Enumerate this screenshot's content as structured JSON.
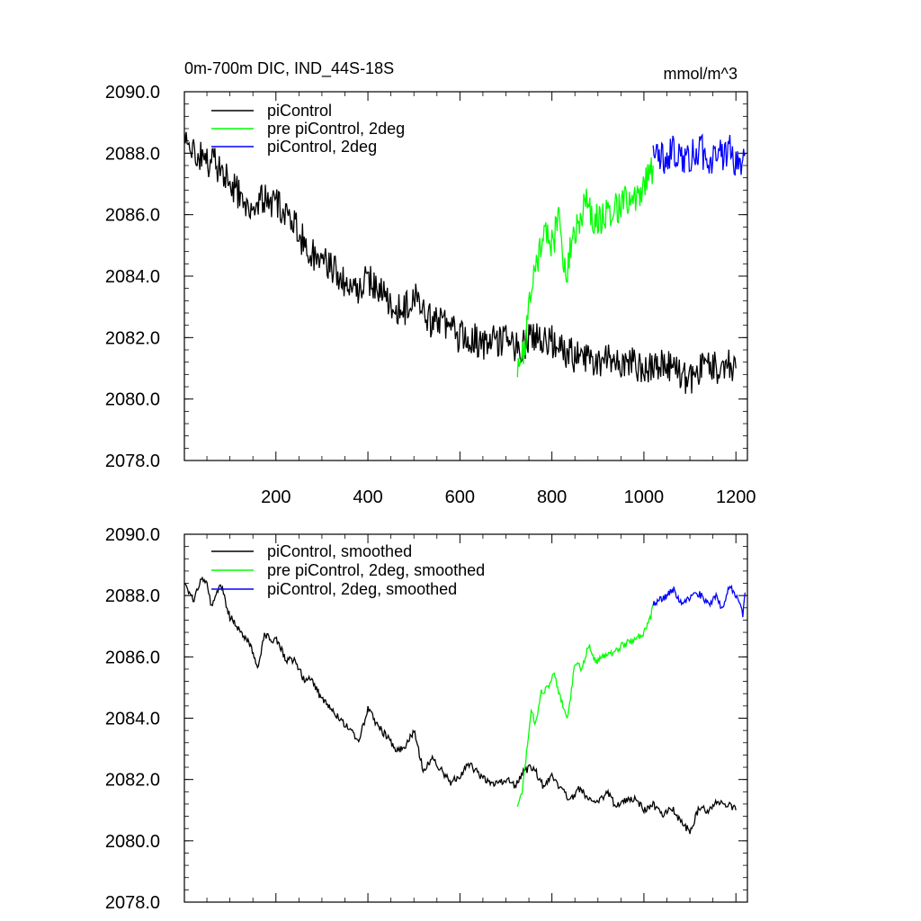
{
  "chart_data": [
    {
      "type": "line",
      "title": "0m-700m DIC, IND_44S-18S",
      "units": "mmol/m^3",
      "xlim": [
        1,
        1225
      ],
      "ylim": [
        2078.0,
        2090.0
      ],
      "x_tick_labels": [
        "200",
        "400",
        "600",
        "800",
        "1000",
        "1200"
      ],
      "y_tick_labels": [
        "2078.0",
        "2080.0",
        "2082.0",
        "2084.0",
        "2086.0",
        "2088.0",
        "2090.0"
      ],
      "legend": "top-left",
      "series": [
        {
          "name": "piControl",
          "color": "#000000",
          "x": [
            1,
            25,
            50,
            75,
            100,
            125,
            150,
            175,
            200,
            225,
            250,
            275,
            300,
            325,
            350,
            375,
            400,
            425,
            450,
            475,
            500,
            525,
            550,
            575,
            600,
            625,
            650,
            675,
            700,
            725,
            750,
            775,
            800,
            825,
            850,
            875,
            900,
            925,
            950,
            975,
            1000,
            1025,
            1050,
            1075,
            1100,
            1125,
            1150,
            1175,
            1200
          ],
          "y": [
            2088.4,
            2088.0,
            2087.7,
            2087.6,
            2087.0,
            2086.6,
            2086.3,
            2086.5,
            2086.4,
            2086.0,
            2085.4,
            2084.7,
            2084.5,
            2084.2,
            2083.7,
            2083.5,
            2083.9,
            2083.5,
            2083.0,
            2082.8,
            2083.4,
            2082.6,
            2082.5,
            2082.3,
            2082.0,
            2082.0,
            2081.8,
            2081.9,
            2081.9,
            2081.6,
            2081.9,
            2082.1,
            2081.9,
            2081.6,
            2081.4,
            2081.3,
            2081.2,
            2081.4,
            2081.1,
            2081.2,
            2081.0,
            2081.2,
            2081.1,
            2080.9,
            2080.6,
            2081.1,
            2081.0,
            2081.1,
            2081.0
          ]
        },
        {
          "name": "pre piControl, 2deg",
          "color": "#00ff00",
          "x": [
            725,
            740,
            755,
            770,
            785,
            800,
            815,
            830,
            845,
            860,
            875,
            890,
            905,
            920,
            935,
            950,
            965,
            980,
            995,
            1010,
            1020
          ],
          "y": [
            2081.0,
            2081.6,
            2083.8,
            2084.6,
            2085.4,
            2085.0,
            2085.8,
            2083.8,
            2085.4,
            2085.6,
            2086.6,
            2085.9,
            2085.8,
            2086.0,
            2086.1,
            2086.3,
            2086.5,
            2086.6,
            2086.8,
            2087.2,
            2087.6
          ]
        },
        {
          "name": "piControl, 2deg",
          "color": "#0000ff",
          "x": [
            1020,
            1035,
            1050,
            1065,
            1080,
            1095,
            1110,
            1125,
            1140,
            1155,
            1170,
            1185,
            1200,
            1215,
            1220
          ],
          "y": [
            2087.8,
            2087.9,
            2087.8,
            2088.1,
            2087.9,
            2087.8,
            2088.0,
            2088.1,
            2087.7,
            2088.0,
            2087.9,
            2088.2,
            2087.6,
            2087.9,
            2088.0
          ]
        }
      ]
    },
    {
      "type": "line",
      "xlim": [
        1,
        1225
      ],
      "ylim": [
        2078.0,
        2090.0
      ],
      "y_tick_labels": [
        "2078.0",
        "2080.0",
        "2082.0",
        "2084.0",
        "2086.0",
        "2088.0",
        "2090.0"
      ],
      "legend": "top-left",
      "series": [
        {
          "name": "piControl, smoothed",
          "color": "#000000",
          "x": [
            1,
            10,
            20,
            30,
            40,
            50,
            60,
            70,
            80,
            90,
            100,
            115,
            130,
            145,
            160,
            175,
            190,
            205,
            220,
            240,
            260,
            280,
            300,
            320,
            340,
            360,
            380,
            400,
            420,
            440,
            460,
            480,
            500,
            520,
            540,
            560,
            580,
            600,
            620,
            640,
            660,
            680,
            700,
            720,
            740,
            760,
            780,
            800,
            820,
            840,
            860,
            880,
            900,
            920,
            940,
            960,
            980,
            1000,
            1020,
            1040,
            1060,
            1080,
            1100,
            1120,
            1140,
            1160,
            1180,
            1200
          ],
          "y": [
            2088.5,
            2088.1,
            2087.8,
            2088.3,
            2088.6,
            2088.4,
            2087.6,
            2088.0,
            2088.4,
            2087.8,
            2087.3,
            2087.0,
            2086.7,
            2086.4,
            2085.6,
            2086.7,
            2086.6,
            2086.5,
            2085.9,
            2085.9,
            2085.3,
            2085.2,
            2084.6,
            2084.3,
            2084.0,
            2083.6,
            2083.3,
            2084.3,
            2083.8,
            2083.4,
            2083.0,
            2083.0,
            2083.6,
            2082.3,
            2082.7,
            2082.3,
            2081.9,
            2082.1,
            2082.5,
            2082.2,
            2081.9,
            2081.9,
            2082.0,
            2081.8,
            2082.3,
            2082.4,
            2081.8,
            2082.1,
            2081.7,
            2081.3,
            2081.7,
            2081.4,
            2081.2,
            2081.6,
            2081.1,
            2081.3,
            2081.4,
            2081.0,
            2081.2,
            2080.8,
            2081.1,
            2080.6,
            2080.3,
            2081.1,
            2081.0,
            2081.3,
            2081.2,
            2081.0
          ]
        },
        {
          "name": "pre piControl, 2deg, smoothed",
          "color": "#00ff00",
          "x": [
            725,
            735,
            745,
            755,
            765,
            775,
            790,
            805,
            820,
            835,
            850,
            865,
            880,
            895,
            910,
            925,
            940,
            955,
            970,
            985,
            1000,
            1015,
            1020
          ],
          "y": [
            2081.0,
            2081.6,
            2082.9,
            2084.2,
            2083.8,
            2084.8,
            2085.0,
            2085.4,
            2084.6,
            2084.0,
            2085.8,
            2085.6,
            2086.4,
            2085.8,
            2086.0,
            2086.1,
            2086.2,
            2086.4,
            2086.5,
            2086.6,
            2086.8,
            2087.3,
            2087.7
          ]
        },
        {
          "name": "piControl, 2deg, smoothed",
          "color": "#0000ff",
          "x": [
            1020,
            1035,
            1050,
            1065,
            1080,
            1095,
            1110,
            1125,
            1140,
            1155,
            1170,
            1185,
            1200,
            1215,
            1220
          ],
          "y": [
            2087.7,
            2087.9,
            2088.0,
            2088.2,
            2087.8,
            2087.9,
            2088.1,
            2088.0,
            2087.7,
            2088.0,
            2087.6,
            2088.3,
            2088.0,
            2087.4,
            2088.1
          ]
        }
      ]
    }
  ]
}
